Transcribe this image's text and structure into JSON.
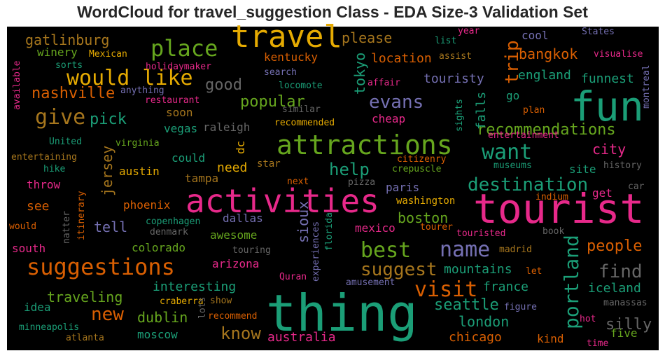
{
  "chart_data": {
    "type": "wordcloud",
    "title": "WordCloud for travel_suggestion Class - EDA Size-3 Validation Set",
    "background": "#000000",
    "palette": [
      "#1b9e77",
      "#d95f02",
      "#7570b3",
      "#e7298a",
      "#66a61e",
      "#e6ab02",
      "#a6761d",
      "#666666"
    ],
    "words": [
      {
        "text": "thing",
        "size": 72,
        "color": "#1b9e77"
      },
      {
        "text": "tourist",
        "size": 58,
        "color": "#e7298a"
      },
      {
        "text": "fun",
        "size": 58,
        "color": "#1b9e77"
      },
      {
        "text": "activities",
        "size": 46,
        "color": "#e7298a"
      },
      {
        "text": "travel",
        "size": 44,
        "color": "#e6ab02"
      },
      {
        "text": "attractions",
        "size": 38,
        "color": "#66a61e"
      },
      {
        "text": "suggestions",
        "size": 32,
        "color": "#d95f02"
      },
      {
        "text": "place",
        "size": 32,
        "color": "#66a61e"
      },
      {
        "text": "give",
        "size": 30,
        "color": "#a6761d"
      },
      {
        "text": "would like",
        "size": 30,
        "color": "#e6ab02"
      },
      {
        "text": "want",
        "size": 30,
        "color": "#1b9e77"
      },
      {
        "text": "best",
        "size": 30,
        "color": "#66a61e"
      },
      {
        "text": "name",
        "size": 30,
        "color": "#7570b3"
      },
      {
        "text": "visit",
        "size": 30,
        "color": "#d95f02"
      },
      {
        "text": "portland",
        "size": 28,
        "color": "#1b9e77"
      },
      {
        "text": "find",
        "size": 26,
        "color": "#666666"
      },
      {
        "text": "destination",
        "size": 26,
        "color": "#1b9e77"
      },
      {
        "text": "trip",
        "size": 26,
        "color": "#d95f02"
      },
      {
        "text": "evans",
        "size": 26,
        "color": "#7570b3"
      },
      {
        "text": "suggest",
        "size": 26,
        "color": "#a6761d"
      },
      {
        "text": "new",
        "size": 26,
        "color": "#d95f02"
      },
      {
        "text": "know",
        "size": 24,
        "color": "#a6761d"
      },
      {
        "text": "help",
        "size": 24,
        "color": "#1b9e77"
      },
      {
        "text": "nashville",
        "size": 22,
        "color": "#d95f02"
      },
      {
        "text": "pick",
        "size": 22,
        "color": "#1b9e77"
      },
      {
        "text": "good",
        "size": 22,
        "color": "#666666"
      },
      {
        "text": "popular",
        "size": 22,
        "color": "#66a61e"
      },
      {
        "text": "recommendations",
        "size": 22,
        "color": "#66a61e"
      },
      {
        "text": "seattle",
        "size": 22,
        "color": "#1b9e77"
      },
      {
        "text": "tokyo",
        "size": 20,
        "color": "#1b9e77"
      },
      {
        "text": "silly",
        "size": 22,
        "color": "#666666"
      },
      {
        "text": "people",
        "size": 22,
        "color": "#d95f02"
      },
      {
        "text": "city",
        "size": 20,
        "color": "#e7298a"
      },
      {
        "text": "bangkok",
        "size": 20,
        "color": "#d95f02"
      },
      {
        "text": "please",
        "size": 20,
        "color": "#a6761d"
      },
      {
        "text": "gatlinburg",
        "size": 20,
        "color": "#a6761d"
      },
      {
        "text": "traveling",
        "size": 20,
        "color": "#66a61e"
      },
      {
        "text": "boston",
        "size": 20,
        "color": "#66a61e"
      },
      {
        "text": "london",
        "size": 20,
        "color": "#1b9e77"
      },
      {
        "text": "dublin",
        "size": 20,
        "color": "#66a61e"
      },
      {
        "text": "jersey",
        "size": 20,
        "color": "#a6761d"
      },
      {
        "text": "sioux",
        "size": 20,
        "color": "#7570b3"
      },
      {
        "text": "touristy",
        "size": 18,
        "color": "#7570b3"
      },
      {
        "text": "tell",
        "size": 20,
        "color": "#7570b3"
      },
      {
        "text": "need",
        "size": 18,
        "color": "#e6ab02"
      },
      {
        "text": "falls",
        "size": 18,
        "color": "#1b9e77"
      },
      {
        "text": "england",
        "size": 18,
        "color": "#1b9e77"
      },
      {
        "text": "funnest",
        "size": 18,
        "color": "#1b9e77"
      },
      {
        "text": "iceland",
        "size": 18,
        "color": "#1b9e77"
      },
      {
        "text": "france",
        "size": 18,
        "color": "#1b9e77"
      },
      {
        "text": "mountains",
        "size": 18,
        "color": "#1b9e77"
      },
      {
        "text": "interesting",
        "size": 18,
        "color": "#1b9e77"
      },
      {
        "text": "location",
        "size": 18,
        "color": "#d95f02"
      },
      {
        "text": "kentucky",
        "size": 16,
        "color": "#d95f02"
      },
      {
        "text": "winery",
        "size": 16,
        "color": "#66a61e"
      },
      {
        "text": "see",
        "size": 18,
        "color": "#d95f02"
      },
      {
        "text": "chicago",
        "size": 18,
        "color": "#d95f02"
      },
      {
        "text": "australia",
        "size": 18,
        "color": "#e7298a"
      },
      {
        "text": "moscow",
        "size": 16,
        "color": "#1b9e77"
      },
      {
        "text": "south",
        "size": 16,
        "color": "#e7298a"
      },
      {
        "text": "colorado",
        "size": 16,
        "color": "#66a61e"
      },
      {
        "text": "arizona",
        "size": 16,
        "color": "#e7298a"
      },
      {
        "text": "awesome",
        "size": 16,
        "color": "#66a61e"
      },
      {
        "text": "dallas",
        "size": 16,
        "color": "#7570b3"
      },
      {
        "text": "phoenix",
        "size": 16,
        "color": "#d95f02"
      },
      {
        "text": "tampa",
        "size": 16,
        "color": "#a6761d"
      },
      {
        "text": "austin",
        "size": 16,
        "color": "#e6ab02"
      },
      {
        "text": "could",
        "size": 16,
        "color": "#1b9e77"
      },
      {
        "text": "vegas",
        "size": 16,
        "color": "#1b9e77"
      },
      {
        "text": "soon",
        "size": 16,
        "color": "#a6761d"
      },
      {
        "text": "raleigh",
        "size": 16,
        "color": "#666666"
      },
      {
        "text": "cheap",
        "size": 16,
        "color": "#e7298a"
      },
      {
        "text": "mexico",
        "size": 16,
        "color": "#e7298a"
      },
      {
        "text": "paris",
        "size": 16,
        "color": "#7570b3"
      },
      {
        "text": "site",
        "size": 16,
        "color": "#1b9e77"
      },
      {
        "text": "get",
        "size": 16,
        "color": "#e7298a"
      },
      {
        "text": "go",
        "size": 16,
        "color": "#1b9e77"
      },
      {
        "text": "cool",
        "size": 16,
        "color": "#7570b3"
      },
      {
        "text": "kind",
        "size": 16,
        "color": "#d95f02"
      },
      {
        "text": "five",
        "size": 16,
        "color": "#66a61e"
      },
      {
        "text": "idea",
        "size": 16,
        "color": "#1b9e77"
      },
      {
        "text": "throw",
        "size": 16,
        "color": "#e7298a"
      },
      {
        "text": "dc",
        "size": 16,
        "color": "#e6ab02"
      },
      {
        "text": "star",
        "size": 14,
        "color": "#a6761d"
      },
      {
        "text": "washington",
        "size": 14,
        "color": "#e6ab02"
      },
      {
        "text": "crepuscle",
        "size": 13,
        "color": "#66a61e"
      },
      {
        "text": "citizenry",
        "size": 13,
        "color": "#d95f02"
      },
      {
        "text": "affair",
        "size": 13,
        "color": "#e7298a"
      },
      {
        "text": "recommended",
        "size": 13,
        "color": "#e6ab02"
      },
      {
        "text": "similar",
        "size": 13,
        "color": "#666666"
      },
      {
        "text": "restaurant",
        "size": 13,
        "color": "#e7298a"
      },
      {
        "text": "locomote",
        "size": 13,
        "color": "#1b9e77"
      },
      {
        "text": "search",
        "size": 13,
        "color": "#7570b3"
      },
      {
        "text": "holidaymaker",
        "size": 13,
        "color": "#e7298a"
      },
      {
        "text": "Mexican",
        "size": 13,
        "color": "#e6ab02"
      },
      {
        "text": "sorts",
        "size": 13,
        "color": "#1b9e77"
      },
      {
        "text": "anything",
        "size": 13,
        "color": "#7570b3"
      },
      {
        "text": "virginia",
        "size": 13,
        "color": "#66a61e"
      },
      {
        "text": "United",
        "size": 13,
        "color": "#1b9e77"
      },
      {
        "text": "entertaining",
        "size": 13,
        "color": "#a6761d"
      },
      {
        "text": "hike",
        "size": 13,
        "color": "#1b9e77"
      },
      {
        "text": "would",
        "size": 13,
        "color": "#d95f02"
      },
      {
        "text": "natter",
        "size": 13,
        "color": "#666666"
      },
      {
        "text": "itinerary",
        "size": 13,
        "color": "#d95f02"
      },
      {
        "text": "available",
        "size": 13,
        "color": "#e7298a"
      },
      {
        "text": "copenhagen",
        "size": 13,
        "color": "#1b9e77"
      },
      {
        "text": "denmark",
        "size": 13,
        "color": "#666666"
      },
      {
        "text": "touring",
        "size": 13,
        "color": "#666666"
      },
      {
        "text": "Quran",
        "size": 13,
        "color": "#e7298a"
      },
      {
        "text": "craberra",
        "size": 13,
        "color": "#e6ab02"
      },
      {
        "text": "show",
        "size": 13,
        "color": "#a6761d"
      },
      {
        "text": "lots",
        "size": 13,
        "color": "#666666"
      },
      {
        "text": "recommend",
        "size": 13,
        "color": "#d95f02"
      },
      {
        "text": "minneapolis",
        "size": 13,
        "color": "#1b9e77"
      },
      {
        "text": "atlanta",
        "size": 13,
        "color": "#a6761d"
      },
      {
        "text": "experiences",
        "size": 13,
        "color": "#7570b3"
      },
      {
        "text": "florida",
        "size": 13,
        "color": "#1b9e77"
      },
      {
        "text": "amusement",
        "size": 13,
        "color": "#7570b3"
      },
      {
        "text": "madrid",
        "size": 13,
        "color": "#a6761d"
      },
      {
        "text": "let",
        "size": 13,
        "color": "#d95f02"
      },
      {
        "text": "figure",
        "size": 13,
        "color": "#7570b3"
      },
      {
        "text": "hot",
        "size": 13,
        "color": "#e7298a"
      },
      {
        "text": "time",
        "size": 13,
        "color": "#e7298a"
      },
      {
        "text": "manassas",
        "size": 13,
        "color": "#666666"
      },
      {
        "text": "touristed",
        "size": 13,
        "color": "#e7298a"
      },
      {
        "text": "tourer",
        "size": 13,
        "color": "#d95f02"
      },
      {
        "text": "book",
        "size": 13,
        "color": "#666666"
      },
      {
        "text": "indium",
        "size": 13,
        "color": "#d95f02"
      },
      {
        "text": "car",
        "size": 13,
        "color": "#666666"
      },
      {
        "text": "history",
        "size": 13,
        "color": "#666666"
      },
      {
        "text": "museums",
        "size": 13,
        "color": "#1b9e77"
      },
      {
        "text": "next",
        "size": 13,
        "color": "#d95f02"
      },
      {
        "text": "pizza",
        "size": 13,
        "color": "#666666"
      },
      {
        "text": "entertainment",
        "size": 13,
        "color": "#e7298a"
      },
      {
        "text": "plan",
        "size": 13,
        "color": "#d95f02"
      },
      {
        "text": "sights",
        "size": 13,
        "color": "#1b9e77"
      },
      {
        "text": "assist",
        "size": 13,
        "color": "#a6761d"
      },
      {
        "text": "list",
        "size": 13,
        "color": "#1b9e77"
      },
      {
        "text": "year",
        "size": 13,
        "color": "#e7298a"
      },
      {
        "text": "States",
        "size": 13,
        "color": "#7570b3"
      },
      {
        "text": "visualise",
        "size": 13,
        "color": "#e7298a"
      },
      {
        "text": "montreal",
        "size": 13,
        "color": "#7570b3"
      }
    ]
  }
}
